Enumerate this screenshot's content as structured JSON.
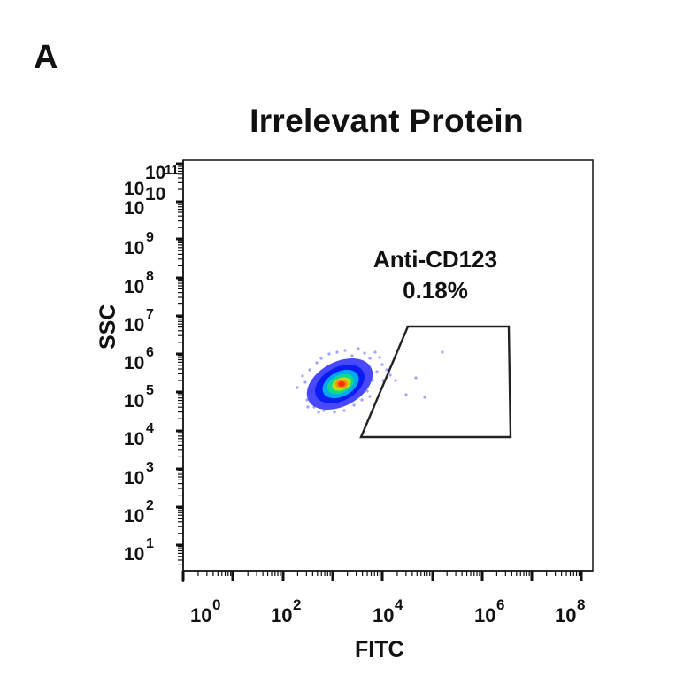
{
  "panel_label": "A",
  "chart_data": {
    "type": "scatter",
    "subtype": "flow-cytometry-density-plot",
    "title": "Irrelevant Protein",
    "xlabel": "FITC",
    "ylabel": "SSC",
    "x_scale": "log",
    "y_scale": "log",
    "xlim": [
      1,
      100000000
    ],
    "ylim": [
      1,
      100000000000
    ],
    "x_ticks": [
      {
        "base": "10",
        "exp": "0"
      },
      {
        "base": "10",
        "exp": "2"
      },
      {
        "base": "10",
        "exp": "4"
      },
      {
        "base": "10",
        "exp": "6"
      },
      {
        "base": "10",
        "exp": "8"
      }
    ],
    "y_ticks": [
      {
        "base": "10",
        "exp": "1"
      },
      {
        "base": "10",
        "exp": "2"
      },
      {
        "base": "10",
        "exp": "3"
      },
      {
        "base": "10",
        "exp": "4"
      },
      {
        "base": "10",
        "exp": "5"
      },
      {
        "base": "10",
        "exp": "6"
      },
      {
        "base": "10",
        "exp": "7"
      },
      {
        "base": "10",
        "exp": "8"
      },
      {
        "base": "10",
        "exp": "9"
      },
      {
        "base": "10",
        "exp": "10"
      },
      {
        "base": "10",
        "exp": "10"
      },
      {
        "base": "10",
        "exp": "11"
      }
    ],
    "population_center": {
      "x_log10": 3.2,
      "y_log10": 5.2
    },
    "gate": {
      "name": "Anti-CD123",
      "percent": "0.18%",
      "shape": "polygon",
      "vertices_log10": [
        [
          3.6,
          4.0
        ],
        [
          4.5,
          6.8
        ],
        [
          6.5,
          6.8
        ],
        [
          6.6,
          4.0
        ]
      ]
    },
    "grid": false,
    "colormap": [
      "#3030ff",
      "#00aaff",
      "#00e080",
      "#c8e000",
      "#ff8000",
      "#ff2000"
    ]
  }
}
